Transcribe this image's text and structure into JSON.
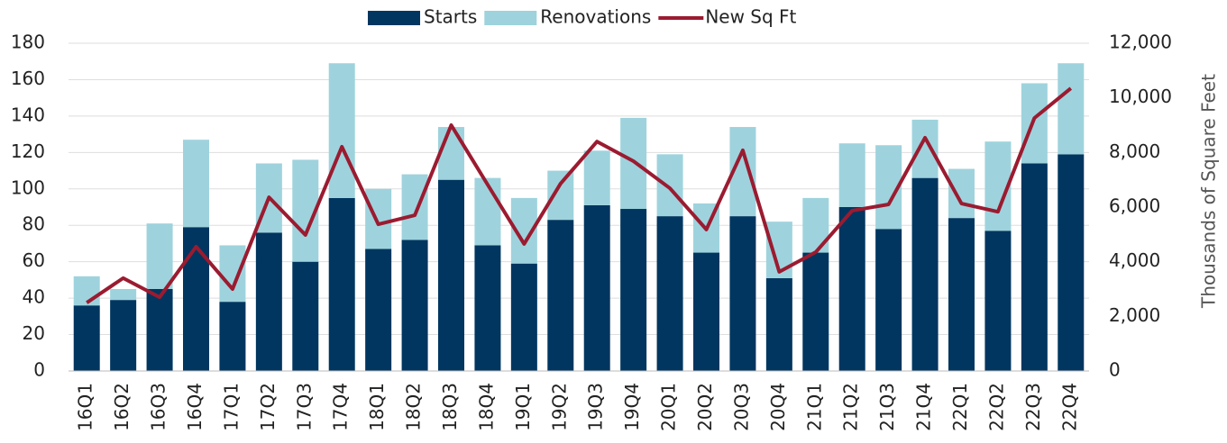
{
  "chart_data": {
    "type": "stacked_bar_line",
    "y2label": "Thousands of Square Feet",
    "categories": [
      "16Q1",
      "16Q2",
      "16Q3",
      "16Q4",
      "17Q1",
      "17Q2",
      "17Q3",
      "17Q4",
      "18Q1",
      "18Q2",
      "18Q3",
      "18Q4",
      "19Q1",
      "19Q2",
      "19Q3",
      "19Q4",
      "20Q1",
      "20Q2",
      "20Q3",
      "20Q4",
      "21Q1",
      "21Q2",
      "21Q3",
      "21Q4",
      "22Q1",
      "22Q2",
      "22Q3",
      "22Q4"
    ],
    "series": [
      {
        "name": "Starts",
        "type": "bar",
        "color": "#003660",
        "values": [
          36,
          39,
          45,
          79,
          38,
          76,
          60,
          95,
          67,
          72,
          105,
          69,
          59,
          83,
          91,
          89,
          85,
          65,
          85,
          51,
          65,
          90,
          78,
          106,
          84,
          77,
          114,
          119
        ]
      },
      {
        "name": "Renovations",
        "type": "bar",
        "color": "#9ed3dd",
        "values": [
          16,
          6,
          36,
          48,
          31,
          38,
          56,
          74,
          33,
          36,
          29,
          37,
          36,
          27,
          30,
          50,
          34,
          27,
          49,
          31,
          30,
          35,
          46,
          32,
          27,
          49,
          44,
          50
        ]
      },
      {
        "name": "New Sq Ft",
        "type": "line",
        "axis": "y2",
        "color": "#9b1b30",
        "values": [
          2500,
          3400,
          2700,
          4550,
          3000,
          6360,
          4980,
          8210,
          5370,
          5700,
          9000,
          6820,
          4650,
          6860,
          8400,
          7680,
          6690,
          5180,
          8080,
          3630,
          4350,
          5870,
          6100,
          8540,
          6130,
          5830,
          9260,
          10350
        ]
      }
    ],
    "ylim": [
      0,
      180
    ],
    "yticks": [
      0,
      20,
      40,
      60,
      80,
      100,
      120,
      140,
      160,
      180
    ],
    "y2lim": [
      0,
      12000
    ],
    "y2ticks": [
      0,
      {
        "value": 2000,
        "label": "2,000"
      },
      {
        "value": 4000,
        "label": "4,000"
      },
      {
        "value": 6000,
        "label": "6,000"
      },
      {
        "value": 8000,
        "label": "8,000"
      },
      {
        "value": 10000,
        "label": "10,000"
      },
      {
        "value": 12000,
        "label": "12,000"
      }
    ],
    "grid": true,
    "legend": "top"
  }
}
